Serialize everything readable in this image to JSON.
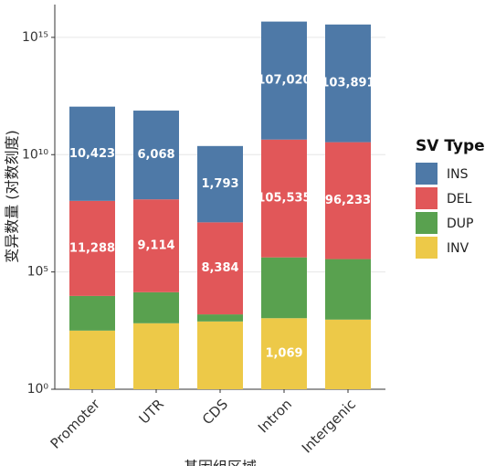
{
  "chart_data": {
    "type": "bar",
    "stacked": true,
    "log_scale": true,
    "x_label": "基因组区域",
    "y_label": "变异数量 (对数刻度)",
    "legend_title": "SV Type",
    "legend_position": "right",
    "categories": [
      "Promoter",
      "UTR",
      "CDS",
      "Intron",
      "Intergenic"
    ],
    "series": [
      {
        "name": "INS",
        "color": "#4e79a7",
        "values": [
          10423,
          6068,
          1793,
          107020,
          103891
        ],
        "value_labels": [
          "10,423",
          "6,068",
          "1,793",
          "107,020",
          "103,891"
        ]
      },
      {
        "name": "DEL",
        "color": "#e15759",
        "values": [
          11288,
          9114,
          8384,
          105535,
          96233
        ],
        "value_labels": [
          "11,288",
          "9,114",
          "8,384",
          "105,535",
          "96,233"
        ]
      },
      {
        "name": "DUP",
        "color": "#59a14f",
        "values": [
          30,
          21,
          2,
          390,
          380
        ]
      },
      {
        "name": "INV",
        "color": "#edc948",
        "values": [
          316,
          650,
          776,
          1069,
          930
        ],
        "value_labels": [
          null,
          null,
          null,
          "1,069",
          null
        ]
      }
    ],
    "ylim": [
      1,
      25000000000000000
    ],
    "yticks": [
      {
        "value": 1,
        "label": "10⁰"
      },
      {
        "value": 100000,
        "label": "10⁵"
      },
      {
        "value": 10000000000,
        "label": "10¹⁰"
      },
      {
        "value": 1000000000000000,
        "label": "10¹⁵"
      }
    ],
    "grid": true
  }
}
